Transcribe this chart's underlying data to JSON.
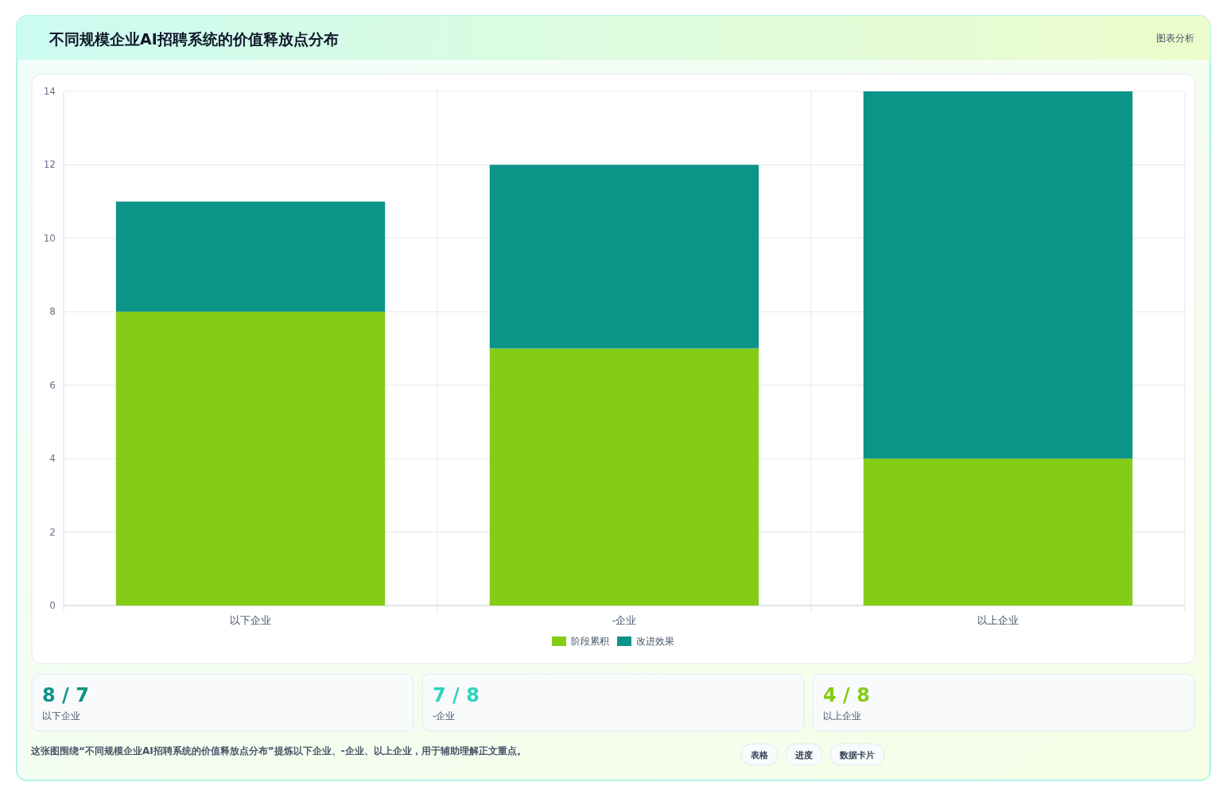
{
  "chart_data": {
    "type": "bar",
    "title": "不同规模企业AI招聘系统的价值释放点分布",
    "stacked": true,
    "categories": [
      "以下企业",
      "-企业",
      "以上企业"
    ],
    "series": [
      {
        "name": "阶段累积",
        "color": "#84cc16",
        "values": [
          8,
          7,
          4
        ]
      },
      {
        "name": "改进效果",
        "color": "#0d9488",
        "values": [
          3,
          5,
          10
        ]
      }
    ],
    "ylim": [
      0,
      14
    ],
    "yticks": [
      0,
      2,
      4,
      6,
      8,
      10,
      12,
      14
    ],
    "grid": true,
    "legend": "bottom",
    "annotations": [
      "图表分析",
      "8 / 7",
      "以下企业",
      "7 / 8",
      "-企业",
      "4 / 8",
      "以上企业",
      "这张图围绕“不同规模企业AI招聘系统的价值释放点分布”提炼以下企业、-企业、以上企业，用于辅助理解正文重点。",
      "表格",
      "进度",
      "数据卡片"
    ]
  }
}
